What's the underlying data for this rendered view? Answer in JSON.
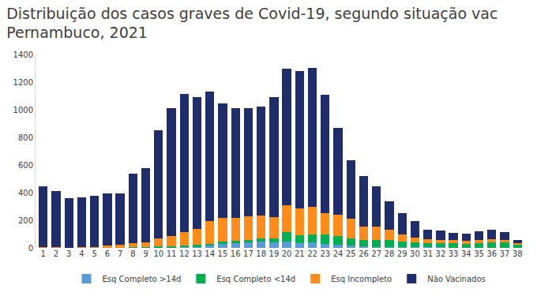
{
  "chart_data": {
    "type": "bar",
    "stacked": true,
    "title": [
      "Distribuição dos casos graves de Covid-19, segundo situação vac",
      "Pernambuco, 2021"
    ],
    "categories": [
      "1",
      "2",
      "3",
      "4",
      "5",
      "6",
      "7",
      "8",
      "9",
      "10",
      "11",
      "12",
      "13",
      "14",
      "15",
      "16",
      "17",
      "18",
      "19",
      "20",
      "21",
      "22",
      "23",
      "24",
      "25",
      "26",
      "27",
      "28",
      "29",
      "30",
      "31",
      "32",
      "33",
      "34",
      "35",
      "36",
      "37",
      "38"
    ],
    "series": [
      {
        "name": "Esq Completo >14d",
        "color": "#5b9bd5",
        "values": [
          0,
          0,
          0,
          0,
          0,
          0,
          0,
          0,
          0,
          2,
          3,
          5,
          8,
          15,
          30,
          35,
          40,
          45,
          40,
          45,
          35,
          40,
          30,
          25,
          15,
          10,
          8,
          8,
          5,
          3,
          3,
          3,
          2,
          2,
          2,
          2,
          2,
          1
        ]
      },
      {
        "name": "Esq Completo <14d",
        "color": "#00b050",
        "values": [
          0,
          0,
          0,
          0,
          0,
          2,
          2,
          3,
          4,
          8,
          10,
          15,
          15,
          15,
          15,
          15,
          20,
          25,
          30,
          70,
          55,
          60,
          65,
          60,
          55,
          50,
          50,
          50,
          40,
          35,
          30,
          30,
          30,
          28,
          35,
          40,
          40,
          25
        ]
      },
      {
        "name": "Esq Incompleto",
        "color": "#ff8c1a",
        "values": [
          3,
          3,
          2,
          3,
          4,
          18,
          23,
          32,
          36,
          60,
          72,
          95,
          112,
          165,
          170,
          165,
          168,
          165,
          155,
          195,
          195,
          200,
          155,
          155,
          140,
          95,
          97,
          72,
          50,
          37,
          32,
          22,
          23,
          20,
          23,
          23,
          18,
          9
        ]
      },
      {
        "name": "Não Vacinados",
        "color": "#1f2d6b",
        "values": [
          442,
          407,
          356,
          365,
          371,
          377,
          368,
          500,
          538,
          780,
          925,
          1000,
          955,
          938,
          830,
          795,
          782,
          787,
          865,
          987,
          993,
          1003,
          860,
          628,
          425,
          365,
          293,
          205,
          155,
          120,
          65,
          70,
          55,
          55,
          60,
          65,
          55,
          20
        ]
      }
    ],
    "ylim": [
      0,
      1400
    ],
    "yticks": [
      0,
      200,
      400,
      600,
      800,
      1000,
      1200,
      1400
    ],
    "grid": false,
    "legend": "bottom"
  }
}
